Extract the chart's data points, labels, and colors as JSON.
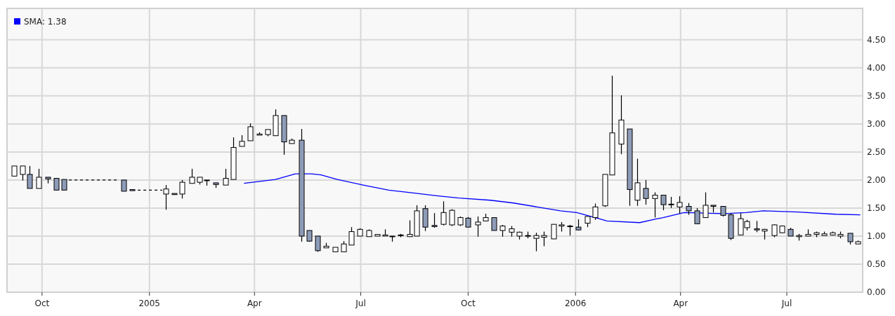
{
  "chart_data": {
    "type": "candlestick",
    "colors": [
      "#ffffff",
      "#ffffff",
      "#8e9cb8",
      "#ffffff",
      "#8e9cb8",
      "#8e9cb8",
      "#8e9cb8",
      "#8e9cb8",
      "#8e9cb8",
      "#ffffff",
      "#8e9cb8",
      "#ffffff",
      "#ffffff",
      "#ffffff",
      "#8e9cb8",
      "#8e9cb8",
      "#ffffff",
      "#ffffff",
      "#ffffff",
      "#ffffff",
      "#ffffff",
      "#ffffff",
      "#ffffff",
      "#8e9cb8",
      "#ffffff",
      "#8e9cb8",
      "#8e9cb8",
      "#8e9cb8",
      "#ffffff",
      "#ffffff",
      "#ffffff",
      "#ffffff",
      "#ffffff",
      "#ffffff",
      "#ffffff",
      "#ffffff",
      "#8e9cb8",
      "#ffffff",
      "#ffffff",
      "#ffffff",
      "#8e9cb8",
      "#8e9cb8",
      "#ffffff",
      "#ffffff",
      "#ffffff",
      "#8e9cb8",
      "#ffffff",
      "#ffffff",
      "#8e9cb8",
      "#ffffff",
      "#ffffff",
      "#ffffff",
      "#ffffff",
      "#ffffff",
      "#ffffff",
      "#ffffff",
      "#ffffff",
      "#ffffff",
      "#8e9cb8",
      "#ffffff",
      "#ffffff",
      "#ffffff",
      "#ffffff",
      "#ffffff",
      "#8e9cb8",
      "#ffffff",
      "#8e9cb8",
      "#ffffff",
      "#8e9cb8",
      "#8e9cb8",
      "#ffffff",
      "#8e9cb8",
      "#8e9cb8",
      "#ffffff",
      "#8e9cb8",
      "#8e9cb8",
      "#8e9cb8",
      "#ffffff",
      "#ffffff",
      "#8e9cb8",
      "#ffffff",
      "#ffffff",
      "#ffffff",
      "#8e9cb8",
      "#ffffff",
      "#ffffff",
      "#ffffff",
      "#ffffff",
      "#ffffff",
      "#ffffff",
      "#8e9cb8",
      "#ffffff"
    ],
    "x": [
      "2004-09-07",
      "2004-09-14",
      "2004-09-20",
      "2004-09-28",
      "2004-10-06",
      "2004-10-13",
      "2004-10-20",
      "2004-12-10",
      "2004-12-17",
      "2005-01-15",
      "2005-01-22",
      "2005-01-29",
      "2005-02-06",
      "2005-02-13",
      "2005-02-19",
      "2005-02-27",
      "2005-03-07",
      "2005-03-14",
      "2005-03-21",
      "2005-03-28",
      "2005-04-05",
      "2005-04-12",
      "2005-04-19",
      "2005-04-26",
      "2005-05-03",
      "2005-05-11",
      "2005-05-18",
      "2005-05-25",
      "2005-06-01",
      "2005-06-09",
      "2005-06-16",
      "2005-06-23",
      "2005-06-30",
      "2005-07-08",
      "2005-07-15",
      "2005-07-22",
      "2005-07-28",
      "2005-08-04",
      "2005-08-12",
      "2005-08-18",
      "2005-08-25",
      "2005-09-02",
      "2005-09-10",
      "2005-09-17",
      "2005-09-24",
      "2005-10-01",
      "2005-10-09",
      "2005-10-16",
      "2005-10-23",
      "2005-10-30",
      "2005-11-07",
      "2005-11-14",
      "2005-11-21",
      "2005-11-28",
      "2005-12-05",
      "2005-12-13",
      "2005-12-20",
      "2005-12-27",
      "2006-01-03",
      "2006-01-11",
      "2006-01-18",
      "2006-01-26",
      "2006-02-01",
      "2006-02-09",
      "2006-02-16",
      "2006-02-23",
      "2006-03-02",
      "2006-03-10",
      "2006-03-17",
      "2006-03-24",
      "2006-03-31",
      "2006-04-08",
      "2006-04-15",
      "2006-04-22",
      "2006-04-29",
      "2006-05-07",
      "2006-05-14",
      "2006-05-22",
      "2006-05-28",
      "2006-06-05",
      "2006-06-12",
      "2006-06-20",
      "2006-06-27",
      "2006-07-04",
      "2006-07-11",
      "2006-07-19",
      "2006-07-26",
      "2006-08-02",
      "2006-08-09",
      "2006-08-16",
      "2006-08-24",
      "2006-08-31"
    ],
    "ohlc": [
      [
        2.07,
        2.25,
        2.07,
        2.25
      ],
      [
        2.1,
        2.25,
        1.99,
        2.25
      ],
      [
        2.1,
        2.25,
        1.85,
        1.85
      ],
      [
        1.85,
        2.2,
        1.85,
        2.05
      ],
      [
        2.05,
        2.05,
        1.94,
        2.02
      ],
      [
        2.03,
        2.03,
        1.82,
        1.82
      ],
      [
        2.01,
        2.01,
        1.82,
        1.82
      ],
      [
        2.0,
        2.0,
        1.8,
        1.8
      ],
      [
        1.83,
        1.83,
        1.81,
        1.81
      ],
      [
        1.75,
        1.91,
        1.47,
        1.84
      ],
      [
        1.76,
        1.76,
        1.74,
        1.74
      ],
      [
        1.75,
        2.0,
        1.67,
        1.96
      ],
      [
        1.94,
        2.2,
        1.94,
        2.05
      ],
      [
        1.96,
        2.05,
        1.92,
        2.05
      ],
      [
        2.0,
        2.0,
        1.9,
        1.99
      ],
      [
        1.95,
        1.95,
        1.86,
        1.92
      ],
      [
        1.91,
        2.2,
        1.91,
        2.03
      ],
      [
        2.01,
        2.76,
        2.01,
        2.58
      ],
      [
        2.6,
        2.8,
        2.6,
        2.69
      ],
      [
        2.7,
        3.01,
        2.7,
        2.95
      ],
      [
        2.8,
        2.85,
        2.8,
        2.82
      ],
      [
        2.81,
        2.9,
        2.78,
        2.9
      ],
      [
        2.79,
        3.26,
        2.79,
        3.15
      ],
      [
        3.15,
        3.15,
        2.45,
        2.68
      ],
      [
        2.65,
        2.74,
        2.65,
        2.71
      ],
      [
        2.71,
        2.91,
        0.9,
        1.0
      ],
      [
        1.1,
        1.1,
        0.9,
        0.91
      ],
      [
        1.0,
        1.0,
        0.72,
        0.74
      ],
      [
        0.79,
        0.88,
        0.79,
        0.82
      ],
      [
        0.72,
        0.8,
        0.72,
        0.8
      ],
      [
        0.72,
        0.91,
        0.72,
        0.86
      ],
      [
        0.84,
        1.16,
        0.84,
        1.08
      ],
      [
        1.0,
        1.14,
        1.0,
        1.12
      ],
      [
        0.99,
        1.12,
        0.99,
        1.1
      ],
      [
        1.0,
        1.03,
        1.0,
        1.03
      ],
      [
        1.0,
        1.12,
        1.0,
        1.02
      ],
      [
        1.0,
        1.0,
        0.9,
        0.99
      ],
      [
        1.01,
        1.04,
        0.98,
        1.02
      ],
      [
        0.99,
        1.28,
        0.99,
        1.03
      ],
      [
        1.0,
        1.55,
        1.0,
        1.45
      ],
      [
        1.49,
        1.55,
        1.09,
        1.16
      ],
      [
        1.19,
        1.41,
        1.15,
        1.17
      ],
      [
        1.21,
        1.62,
        1.19,
        1.42
      ],
      [
        1.2,
        1.48,
        1.18,
        1.46
      ],
      [
        1.2,
        1.35,
        1.18,
        1.33
      ],
      [
        1.32,
        1.34,
        1.16,
        1.16
      ],
      [
        1.2,
        1.35,
        0.99,
        1.25
      ],
      [
        1.27,
        1.4,
        1.27,
        1.33
      ],
      [
        1.33,
        1.33,
        1.1,
        1.1
      ],
      [
        1.1,
        1.2,
        0.99,
        1.18
      ],
      [
        1.07,
        1.18,
        0.99,
        1.13
      ],
      [
        1.0,
        1.08,
        0.94,
        1.07
      ],
      [
        1.0,
        1.08,
        0.96,
        1.01
      ],
      [
        0.96,
        1.06,
        0.73,
        1.01
      ],
      [
        0.98,
        1.08,
        0.82,
        1.01
      ],
      [
        0.95,
        1.21,
        0.95,
        1.21
      ],
      [
        1.18,
        1.25,
        1.08,
        1.2
      ],
      [
        1.17,
        1.2,
        1.01,
        1.18
      ],
      [
        1.16,
        1.3,
        1.1,
        1.11
      ],
      [
        1.23,
        1.35,
        1.16,
        1.35
      ],
      [
        1.33,
        1.58,
        1.29,
        1.52
      ],
      [
        1.54,
        2.1,
        1.52,
        2.1
      ],
      [
        2.09,
        3.86,
        2.09,
        2.84
      ],
      [
        2.64,
        3.51,
        2.46,
        3.07
      ],
      [
        2.91,
        2.91,
        1.54,
        1.83
      ],
      [
        1.64,
        2.38,
        1.54,
        1.95
      ],
      [
        1.85,
        2.0,
        1.56,
        1.67
      ],
      [
        1.67,
        1.78,
        1.33,
        1.73
      ],
      [
        1.73,
        1.73,
        1.46,
        1.56
      ],
      [
        1.57,
        1.7,
        1.5,
        1.56
      ],
      [
        1.52,
        1.71,
        1.4,
        1.6
      ],
      [
        1.53,
        1.59,
        1.38,
        1.45
      ],
      [
        1.45,
        1.5,
        1.22,
        1.22
      ],
      [
        1.33,
        1.78,
        1.33,
        1.55
      ],
      [
        1.55,
        1.55,
        1.42,
        1.53
      ],
      [
        1.53,
        1.53,
        1.35,
        1.37
      ],
      [
        1.38,
        1.41,
        0.93,
        0.96
      ],
      [
        1.02,
        1.41,
        1.02,
        1.31
      ],
      [
        1.15,
        1.29,
        1.1,
        1.26
      ],
      [
        1.13,
        1.27,
        1.07,
        1.11
      ],
      [
        1.09,
        1.13,
        0.94,
        1.12
      ],
      [
        1.01,
        1.21,
        0.98,
        1.2
      ],
      [
        1.06,
        1.19,
        1.05,
        1.18
      ],
      [
        1.12,
        1.15,
        1.0,
        1.0
      ],
      [
        0.99,
        1.04,
        0.92,
        1.01
      ],
      [
        1.0,
        1.12,
        1.0,
        1.03
      ],
      [
        1.03,
        1.08,
        0.98,
        1.06
      ],
      [
        1.01,
        1.08,
        1.01,
        1.04
      ],
      [
        1.02,
        1.08,
        1.01,
        1.06
      ],
      [
        1.0,
        1.08,
        0.96,
        1.03
      ],
      [
        1.05,
        1.05,
        0.85,
        0.9
      ],
      [
        0.86,
        0.92,
        0.86,
        0.9
      ]
    ],
    "series": [
      {
        "type": "line",
        "name": "SMA: 1.38",
        "color": "#0000ff",
        "x": [
          "2005-03-23",
          "2005-04-19",
          "2005-05-06",
          "2005-05-20",
          "2005-05-28",
          "2005-06-11",
          "2005-07-03",
          "2005-07-25",
          "2005-08-15",
          "2005-09-04",
          "2005-09-23",
          "2005-10-20",
          "2005-11-09",
          "2005-11-29",
          "2005-12-19",
          "2006-01-02",
          "2006-01-18",
          "2006-01-28",
          "2006-02-25",
          "2006-03-10",
          "2006-03-17",
          "2006-04-04",
          "2006-04-21",
          "2006-05-09",
          "2006-05-27",
          "2006-06-11",
          "2006-07-11",
          "2006-08-12",
          "2006-09-02"
        ],
        "values": [
          1.94,
          2.01,
          2.11,
          2.11,
          2.09,
          2.01,
          1.91,
          1.82,
          1.77,
          1.72,
          1.68,
          1.64,
          1.59,
          1.52,
          1.45,
          1.42,
          1.33,
          1.27,
          1.24,
          1.3,
          1.33,
          1.42,
          1.41,
          1.4,
          1.42,
          1.45,
          1.43,
          1.39,
          1.38
        ]
      },
      {
        "type": "line",
        "color": "#000000",
        "line_style": "dashed",
        "x": [
          "2004-10-24",
          "2004-12-05",
          "2004-12-14",
          "2004-12-22",
          "2005-01-12"
        ],
        "values": [
          2.0,
          2.0,
          null,
          1.82,
          1.82
        ]
      }
    ],
    "xlim": [
      "2004-09-01",
      "2006-09-04"
    ],
    "xticks": [
      {
        "value": "2004-10-01",
        "label": "Oct"
      },
      {
        "value": "2005-01-01",
        "label": "2005"
      },
      {
        "value": "2005-04-01",
        "label": "Apr"
      },
      {
        "value": "2005-07-01",
        "label": "Jul"
      },
      {
        "value": "2005-10-01",
        "label": "Oct"
      },
      {
        "value": "2006-01-01",
        "label": "2006"
      },
      {
        "value": "2006-04-01",
        "label": "Apr"
      },
      {
        "value": "2006-07-01",
        "label": "Jul"
      }
    ],
    "ylim": [
      0,
      5.06
    ],
    "yticks": [
      {
        "value": 0,
        "label": "0.00"
      },
      {
        "value": 0.5,
        "label": "0.50"
      },
      {
        "value": 1,
        "label": "1.00"
      },
      {
        "value": 1.5,
        "label": "1.50"
      },
      {
        "value": 2,
        "label": "2.00"
      },
      {
        "value": 2.5,
        "label": "2.50"
      },
      {
        "value": 3,
        "label": "3.00"
      },
      {
        "value": 3.5,
        "label": "3.50"
      },
      {
        "value": 4,
        "label": "4.00"
      },
      {
        "value": 4.5,
        "label": "4.50"
      }
    ],
    "grid": true,
    "legend": "top left"
  }
}
